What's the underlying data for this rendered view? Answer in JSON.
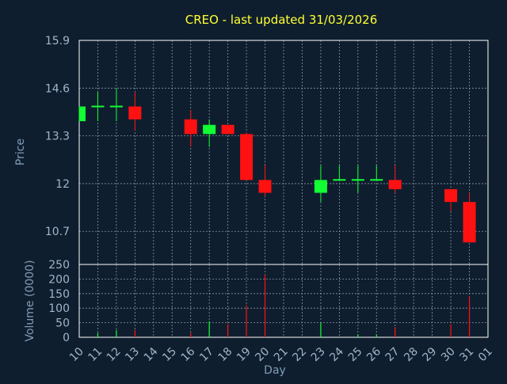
{
  "chart_data": {
    "type": "candlestick",
    "title": "CREO - last updated 31/03/2026",
    "ylabel_price": "Price",
    "ylabel_volume": "Volume (0000)",
    "xlabel": "Day",
    "price_ticks": [
      "15.9",
      "14.6",
      "13.3",
      "12",
      "10.7"
    ],
    "price_tick_values": [
      15.9,
      14.6,
      13.3,
      12.0,
      10.7
    ],
    "price_ylim": [
      9.8,
      15.9
    ],
    "volume_ticks": [
      "250",
      "200",
      "150",
      "100",
      "50",
      "0"
    ],
    "volume_tick_values": [
      250,
      200,
      150,
      100,
      50,
      0
    ],
    "volume_ylim": [
      0,
      250
    ],
    "x_labels": [
      "10",
      "11",
      "12",
      "13",
      "14",
      "15",
      "16",
      "17",
      "18",
      "19",
      "20",
      "21",
      "22",
      "23",
      "24",
      "25",
      "26",
      "27",
      "28",
      "29",
      "30",
      "31",
      "01"
    ],
    "candles": [
      {
        "day": "10",
        "open": 13.7,
        "close": 14.1,
        "high": 14.1,
        "low": 13.7,
        "volume": 0
      },
      {
        "day": "11",
        "open": 14.1,
        "close": 14.1,
        "high": 14.5,
        "low": 13.7,
        "volume": 15
      },
      {
        "day": "12",
        "open": 14.1,
        "close": 14.1,
        "high": 14.6,
        "low": 13.7,
        "volume": 25
      },
      {
        "day": "13",
        "open": 14.1,
        "close": 13.75,
        "high": 14.5,
        "low": 13.45,
        "volume": 25
      },
      {
        "day": "16",
        "open": 13.75,
        "close": 13.35,
        "high": 14.0,
        "low": 13.0,
        "volume": 15
      },
      {
        "day": "17",
        "open": 13.35,
        "close": 13.6,
        "high": 13.75,
        "low": 13.0,
        "volume": 55
      },
      {
        "day": "18",
        "open": 13.6,
        "close": 13.35,
        "high": 13.6,
        "low": 13.35,
        "volume": 45
      },
      {
        "day": "19",
        "open": 13.35,
        "close": 12.1,
        "high": 13.4,
        "low": 12.1,
        "volume": 110
      },
      {
        "day": "20",
        "open": 12.1,
        "close": 11.75,
        "high": 12.5,
        "low": 11.65,
        "volume": 215
      },
      {
        "day": "23",
        "open": 11.75,
        "close": 12.1,
        "high": 12.5,
        "low": 11.5,
        "volume": 50
      },
      {
        "day": "24",
        "open": 12.1,
        "close": 12.1,
        "high": 12.5,
        "low": 12.1,
        "volume": 0
      },
      {
        "day": "25",
        "open": 12.1,
        "close": 12.1,
        "high": 12.5,
        "low": 11.75,
        "volume": 10
      },
      {
        "day": "26",
        "open": 12.1,
        "close": 12.1,
        "high": 12.5,
        "low": 12.1,
        "volume": 10
      },
      {
        "day": "27",
        "open": 12.1,
        "close": 11.85,
        "high": 12.5,
        "low": 11.75,
        "volume": 35
      },
      {
        "day": "30",
        "open": 11.85,
        "close": 11.5,
        "high": 11.85,
        "low": 11.25,
        "volume": 45
      },
      {
        "day": "31",
        "open": 11.5,
        "close": 10.4,
        "high": 11.75,
        "low": 10.4,
        "volume": 140
      }
    ],
    "colors": {
      "up": "#11ff33",
      "down": "#ff1111",
      "background": "#0f1e2e",
      "title": "#ffff33",
      "grid": "#8896a6"
    }
  }
}
